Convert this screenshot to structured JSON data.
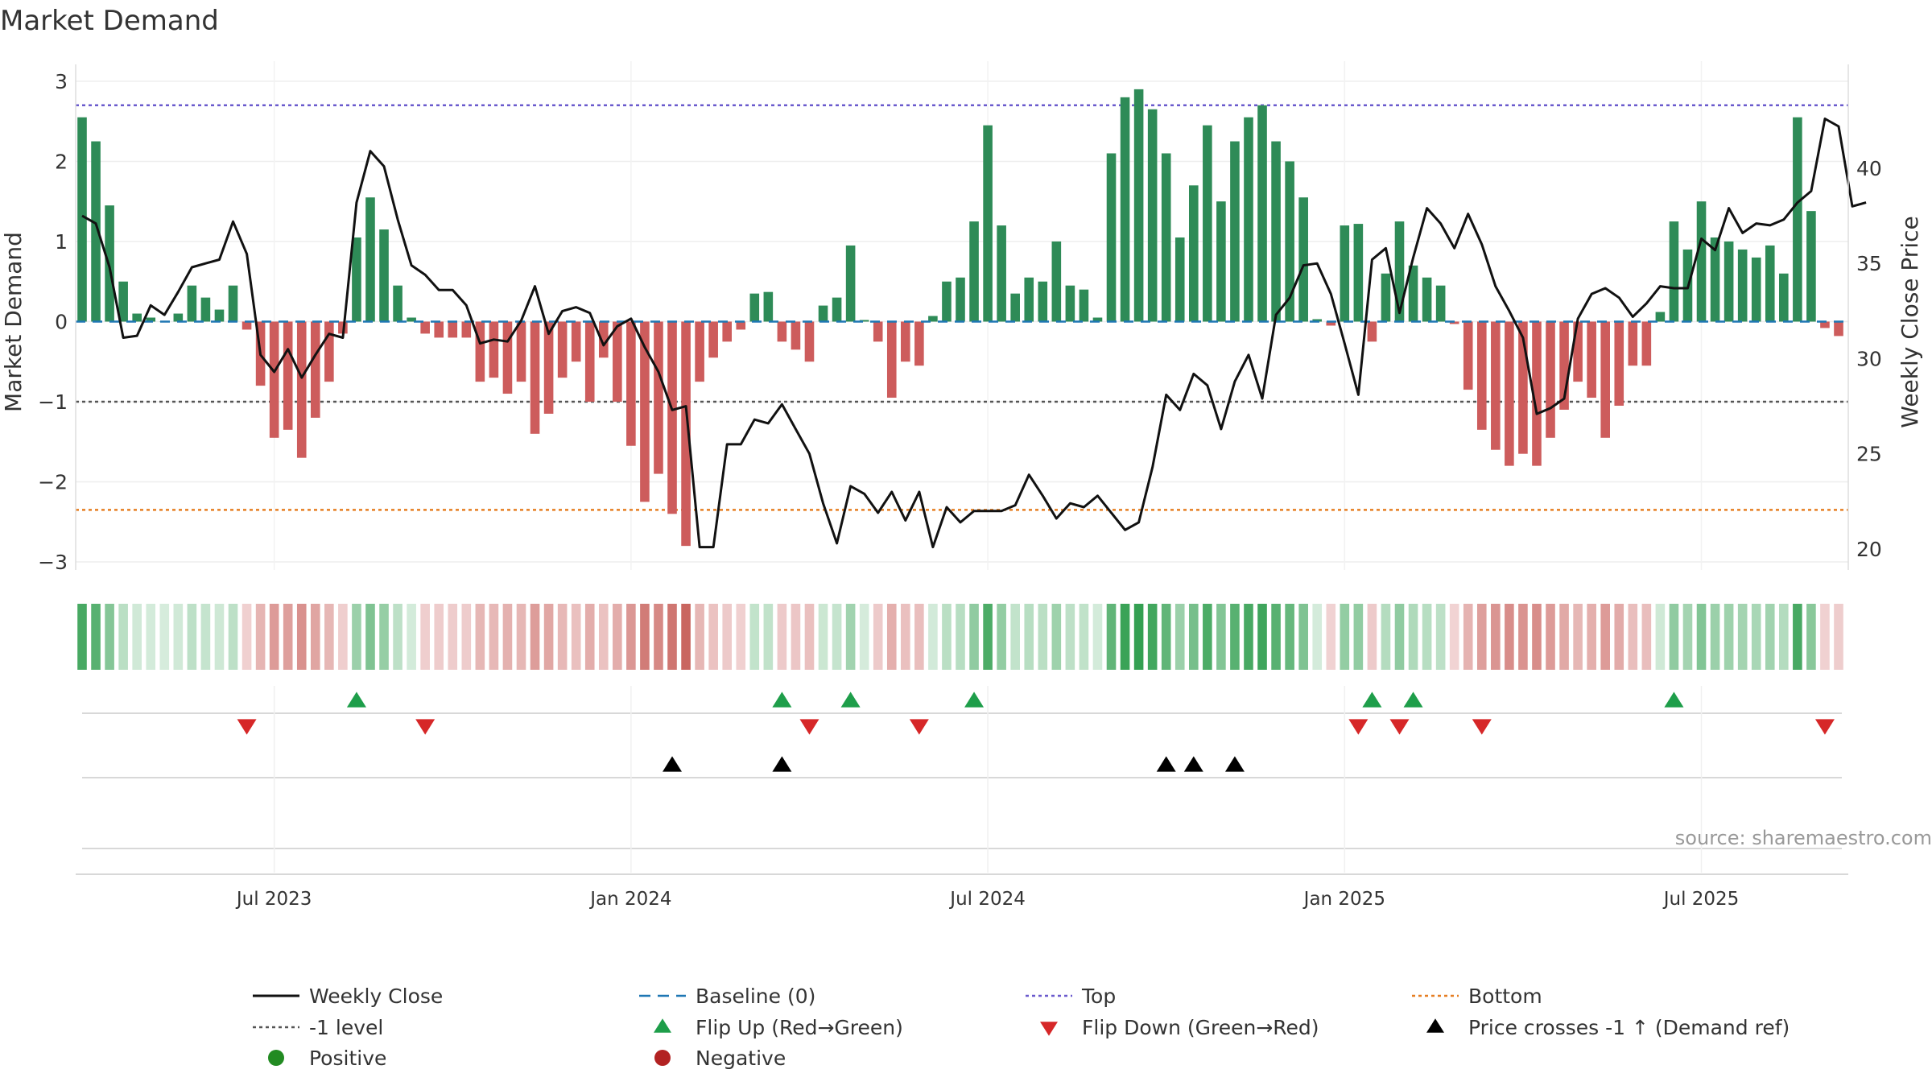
{
  "chart_data": {
    "type": "bar",
    "title": "Market Demand",
    "ylabel_left": "Market Demand",
    "ylabel_right": "Weekly Close Price",
    "source": "source: sharemaestro.com",
    "ylim_left": [
      -3.1,
      3.15
    ],
    "ylim_right": [
      18.9,
      45.2
    ],
    "yticks_left": [
      3,
      2,
      1,
      0,
      -1,
      -2,
      -3
    ],
    "ytick_labels_left": [
      "3",
      "2",
      "1",
      "0",
      "−1",
      "−2",
      "−3"
    ],
    "yticks_right": [
      40,
      35,
      30,
      25,
      20
    ],
    "x_tick_labels": [
      "Jul 2023",
      "Jan 2024",
      "Jul 2024",
      "Jan 2025",
      "Jul 2025"
    ],
    "x_tick_index": [
      14,
      40,
      66,
      92,
      118
    ],
    "ref_lines": {
      "top": 2.7,
      "bottom": -2.35,
      "minus_one": -1,
      "baseline": 0
    },
    "colors": {
      "positive_bar": "#2e8b57",
      "negative_bar": "#cd5c5c",
      "price": "#111111",
      "baseline": "#1f77b4",
      "top": "#6a5acd",
      "bottom": "#e67e22",
      "minus_one": "#555555",
      "flip_up": "#1e9e4a",
      "flip_down": "#d62728",
      "cross": "#000000",
      "positive_dot": "#228b22",
      "negative_dot": "#b22222"
    },
    "series": [
      {
        "name": "Market Demand",
        "values": [
          2.55,
          2.25,
          1.45,
          0.5,
          0.1,
          0.05,
          0,
          0.1,
          0.45,
          0.3,
          0.15,
          0.45,
          -0.1,
          -0.8,
          -1.45,
          -1.35,
          -1.7,
          -1.2,
          -0.75,
          -0.15,
          1.05,
          1.55,
          1.15,
          0.45,
          0.05,
          -0.15,
          -0.2,
          -0.2,
          -0.2,
          -0.75,
          -0.7,
          -0.9,
          -0.75,
          -1.4,
          -1.15,
          -0.7,
          -0.5,
          -1.0,
          -0.45,
          -1.0,
          -1.55,
          -2.25,
          -1.9,
          -2.4,
          -2.8,
          -0.75,
          -0.45,
          -0.25,
          -0.1,
          0.35,
          0.37,
          -0.25,
          -0.35,
          -0.5,
          0.2,
          0.3,
          0.95,
          0.02,
          -0.25,
          -0.95,
          -0.5,
          -0.55,
          0.07,
          0.5,
          0.55,
          1.25,
          2.45,
          1.2,
          0.35,
          0.55,
          0.5,
          1.0,
          0.45,
          0.4,
          0.05,
          2.1,
          2.8,
          2.9,
          2.65,
          2.1,
          1.05,
          1.7,
          2.45,
          1.5,
          2.25,
          2.55,
          2.7,
          2.25,
          2.0,
          1.55,
          0.03,
          -0.05,
          1.2,
          1.22,
          -0.25,
          0.6,
          1.25,
          0.7,
          0.55,
          0.45,
          -0.03,
          -0.85,
          -1.35,
          -1.6,
          -1.8,
          -1.65,
          -1.8,
          -1.45,
          -1.1,
          -0.75,
          -0.95,
          -1.45,
          -1.05,
          -0.55,
          -0.55,
          0.12,
          1.25,
          0.9,
          1.5,
          1.05,
          1.0,
          0.9,
          0.8,
          0.95,
          0.6,
          2.55,
          1.38,
          -0.08,
          -0.18
        ]
      },
      {
        "name": "Weekly Close",
        "values": [
          37.5,
          37.1,
          34.8,
          31.1,
          31.2,
          32.8,
          32.3,
          33.5,
          34.8,
          35.0,
          35.2,
          37.2,
          35.5,
          30.2,
          29.3,
          30.5,
          29.0,
          30.2,
          31.3,
          31.1,
          38.2,
          40.9,
          40.1,
          37.3,
          34.9,
          34.4,
          33.6,
          33.6,
          32.8,
          30.8,
          31.0,
          30.9,
          32.0,
          33.8,
          31.3,
          32.5,
          32.7,
          32.4,
          30.7,
          31.7,
          32.1,
          30.6,
          29.3,
          27.3,
          27.5,
          20.1,
          20.1,
          25.5,
          25.5,
          26.8,
          26.6,
          27.6,
          26.3,
          25.0,
          22.4,
          20.3,
          23.3,
          22.9,
          21.9,
          23.0,
          21.5,
          23.0,
          20.1,
          22.2,
          21.4,
          22.0,
          22.0,
          22.0,
          22.3,
          23.9,
          22.8,
          21.6,
          22.4,
          22.2,
          22.8,
          21.9,
          21.0,
          21.4,
          24.3,
          28.1,
          27.3,
          29.2,
          28.6,
          26.3,
          28.8,
          30.2,
          27.9,
          32.3,
          33.2,
          34.9,
          35.0,
          33.4,
          30.8,
          28.1,
          35.2,
          35.8,
          32.4,
          35.3,
          37.9,
          37.1,
          35.8,
          37.6,
          36.0,
          33.8,
          32.5,
          31.1,
          27.1,
          27.4,
          27.9,
          32.1,
          33.4,
          33.7,
          33.2,
          32.2,
          32.9,
          33.8,
          33.7,
          33.7,
          36.3,
          35.7,
          37.9,
          36.6,
          37.1,
          37.0,
          37.3,
          38.2,
          38.8,
          42.6,
          42.2,
          38.0,
          38.2
        ]
      }
    ],
    "markers": {
      "flip_up_index": [
        20,
        51,
        56,
        65,
        94,
        97,
        116
      ],
      "flip_down_index": [
        12,
        25,
        53,
        61,
        93,
        96,
        102,
        127
      ],
      "price_cross_index": [
        43,
        51,
        79,
        81,
        84
      ]
    },
    "legend": [
      {
        "label": "Weekly Close",
        "kind": "line-solid"
      },
      {
        "label": "Baseline (0)",
        "kind": "line-dash"
      },
      {
        "label": "Top",
        "kind": "line-dot-top"
      },
      {
        "label": "Bottom",
        "kind": "line-dot-bottom"
      },
      {
        "label": "-1 level",
        "kind": "line-dot-minus"
      },
      {
        "label": "Flip Up (Red→Green)",
        "kind": "tri-up"
      },
      {
        "label": "Flip Down (Green→Red)",
        "kind": "tri-down"
      },
      {
        "label": "Price crosses -1 ↑ (Demand ref)",
        "kind": "tri-cross"
      },
      {
        "label": "Positive",
        "kind": "dot-pos"
      },
      {
        "label": "Negative",
        "kind": "dot-neg"
      }
    ]
  }
}
